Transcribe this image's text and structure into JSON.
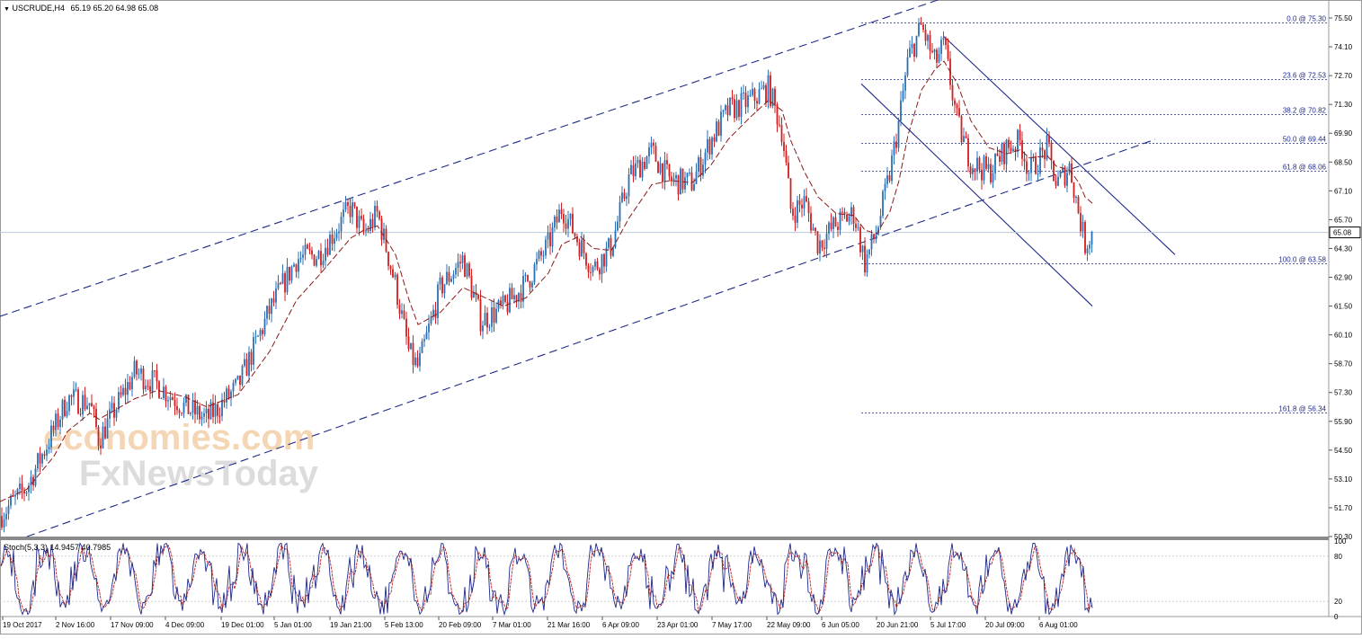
{
  "header": {
    "symbol_label": "USCRUDE,H4",
    "ohlc": "65.19 65.20 64.98 65.08"
  },
  "colors": {
    "bull": "#2b6fb6",
    "bear": "#d21f1f",
    "ma": "#8b1a1a",
    "channel": "#1f2a88",
    "fib": "#1f2a88",
    "bid_line": "#b7c9da",
    "stoch_main": "#1f2a88",
    "stoch_signal": "#c21f1f",
    "watermark_orange": "#f4d6b4",
    "watermark_gray": "#dcdcdc"
  },
  "watermark": {
    "line1": "economies.com",
    "line2": "FxNewsToday"
  },
  "indicator": {
    "label": "Stoch(5,3,3) 14.9457 40.7985"
  },
  "chart_data": [
    {
      "type": "candlestick",
      "symbol": "USCRUDE",
      "timeframe": "H4",
      "ylim": [
        50.3,
        76.2
      ],
      "y_ticks": [
        75.5,
        74.1,
        72.7,
        71.3,
        69.9,
        68.5,
        67.1,
        65.7,
        64.3,
        62.9,
        61.5,
        60.1,
        58.7,
        57.3,
        55.9,
        54.5,
        53.1,
        51.7,
        50.3
      ],
      "x_ticks": [
        "19 Oct 2017",
        "2 Nov 16:00",
        "17 Nov 09:00",
        "4 Dec 09:00",
        "19 Dec 01:00",
        "5 Jan 01:00",
        "19 Jan 21:00",
        "5 Feb 13:00",
        "20 Feb 09:00",
        "7 Mar 01:00",
        "21 Mar 16:00",
        "6 Apr 09:00",
        "23 Apr 01:00",
        "7 May 17:00",
        "22 May 09:00",
        "6 Jun 05:00",
        "20 Jun 21:00",
        "5 Jul 17:00",
        "20 Jul 09:00",
        "6 Aug 01:00"
      ],
      "last_price": "65.08",
      "price_path": [
        [
          0,
          51.3
        ],
        [
          30,
          52.7
        ],
        [
          60,
          55.5
        ],
        [
          75,
          57.0
        ],
        [
          100,
          56.8
        ],
        [
          110,
          55.0
        ],
        [
          150,
          58.3
        ],
        [
          175,
          57.7
        ],
        [
          205,
          56.6
        ],
        [
          230,
          56.0
        ],
        [
          265,
          57.6
        ],
        [
          300,
          61.3
        ],
        [
          330,
          63.8
        ],
        [
          355,
          64.0
        ],
        [
          390,
          66.3
        ],
        [
          405,
          65.0
        ],
        [
          420,
          66.0
        ],
        [
          440,
          62.5
        ],
        [
          455,
          59.2
        ],
        [
          465,
          58.5
        ],
        [
          490,
          62.4
        ],
        [
          515,
          63.8
        ],
        [
          535,
          60.8
        ],
        [
          560,
          61.4
        ],
        [
          585,
          62.6
        ],
        [
          610,
          64.5
        ],
        [
          625,
          66.3
        ],
        [
          645,
          64.5
        ],
        [
          660,
          63.3
        ],
        [
          680,
          64.4
        ],
        [
          700,
          67.8
        ],
        [
          725,
          69.0
        ],
        [
          745,
          67.6
        ],
        [
          770,
          67.5
        ],
        [
          790,
          69.5
        ],
        [
          810,
          71.0
        ],
        [
          835,
          71.5
        ],
        [
          855,
          72.1
        ],
        [
          870,
          70.0
        ],
        [
          880,
          66.0
        ],
        [
          895,
          66.6
        ],
        [
          910,
          64.5
        ],
        [
          930,
          65.5
        ],
        [
          950,
          66.0
        ],
        [
          962,
          63.6
        ],
        [
          975,
          65.1
        ],
        [
          990,
          68.0
        ],
        [
          1000,
          70.5
        ],
        [
          1010,
          73.5
        ],
        [
          1025,
          75.1
        ],
        [
          1040,
          73.3
        ],
        [
          1050,
          74.2
        ],
        [
          1065,
          70.4
        ],
        [
          1080,
          68.5
        ],
        [
          1100,
          68.0
        ],
        [
          1120,
          69.2
        ],
        [
          1135,
          69.5
        ],
        [
          1145,
          68.0
        ],
        [
          1165,
          69.2
        ],
        [
          1175,
          67.4
        ],
        [
          1190,
          68.3
        ],
        [
          1200,
          66.0
        ],
        [
          1207,
          64.5
        ],
        [
          1215,
          65.08
        ]
      ],
      "ma_path": [
        [
          0,
          52.0
        ],
        [
          30,
          52.6
        ],
        [
          60,
          54.2
        ],
        [
          75,
          55.4
        ],
        [
          100,
          56.3
        ],
        [
          110,
          56.0
        ],
        [
          150,
          57.0
        ],
        [
          175,
          57.4
        ],
        [
          205,
          57.1
        ],
        [
          230,
          56.6
        ],
        [
          265,
          57.2
        ],
        [
          300,
          59.3
        ],
        [
          330,
          61.8
        ],
        [
          355,
          63.0
        ],
        [
          390,
          64.8
        ],
        [
          405,
          65.2
        ],
        [
          420,
          65.4
        ],
        [
          440,
          64.0
        ],
        [
          455,
          61.8
        ],
        [
          465,
          60.6
        ],
        [
          490,
          61.2
        ],
        [
          515,
          62.4
        ],
        [
          535,
          62.0
        ],
        [
          560,
          61.5
        ],
        [
          585,
          61.9
        ],
        [
          610,
          63.1
        ],
        [
          625,
          64.5
        ],
        [
          645,
          64.9
        ],
        [
          660,
          64.3
        ],
        [
          680,
          64.2
        ],
        [
          700,
          65.8
        ],
        [
          725,
          67.4
        ],
        [
          745,
          67.6
        ],
        [
          770,
          67.5
        ],
        [
          790,
          68.3
        ],
        [
          810,
          69.6
        ],
        [
          835,
          70.7
        ],
        [
          855,
          71.5
        ],
        [
          870,
          71.0
        ],
        [
          880,
          69.5
        ],
        [
          895,
          68.0
        ],
        [
          910,
          66.8
        ],
        [
          930,
          66.0
        ],
        [
          950,
          65.9
        ],
        [
          962,
          65.2
        ],
        [
          975,
          65.0
        ],
        [
          990,
          66.1
        ],
        [
          1000,
          67.6
        ],
        [
          1010,
          69.8
        ],
        [
          1025,
          72.0
        ],
        [
          1040,
          73.0
        ],
        [
          1050,
          73.4
        ],
        [
          1065,
          72.3
        ],
        [
          1080,
          70.5
        ],
        [
          1100,
          69.2
        ],
        [
          1120,
          68.9
        ],
        [
          1135,
          69.1
        ],
        [
          1145,
          68.7
        ],
        [
          1165,
          68.8
        ],
        [
          1175,
          68.3
        ],
        [
          1190,
          68.1
        ],
        [
          1200,
          67.5
        ],
        [
          1207,
          66.8
        ],
        [
          1215,
          66.5
        ]
      ],
      "fibonacci": [
        {
          "label": "0.0 @ 75.30",
          "price": 75.3
        },
        {
          "label": "23.6 @ 72.53",
          "price": 72.53
        },
        {
          "label": "38.2 @ 70.82",
          "price": 70.82
        },
        {
          "label": "50.0 @ 69.44",
          "price": 69.44
        },
        {
          "label": "61.8 @ 68.06",
          "price": 68.06
        },
        {
          "label": "100.0 @ 63.58",
          "price": 63.58
        },
        {
          "label": "161.8 @ 56.34",
          "price": 56.34
        }
      ],
      "trendlines": [
        {
          "style": "dashed",
          "from": [
            0,
            61.0
          ],
          "to": [
            1045,
            76.4
          ]
        },
        {
          "style": "dashed",
          "from": [
            30,
            50.3
          ],
          "to": [
            1285,
            69.6
          ]
        },
        {
          "style": "solid",
          "from": [
            1050,
            74.6
          ],
          "to": [
            1307,
            64.0
          ]
        },
        {
          "style": "solid",
          "from": [
            958,
            72.3
          ],
          "to": [
            1215,
            61.5
          ]
        }
      ]
    },
    {
      "type": "line",
      "name": "Stoch(5,3,3)",
      "ylim": [
        0,
        100
      ],
      "y_ticks": [
        100,
        80,
        20,
        0
      ],
      "main_value": 14.9457,
      "signal_value": 40.7985
    }
  ]
}
